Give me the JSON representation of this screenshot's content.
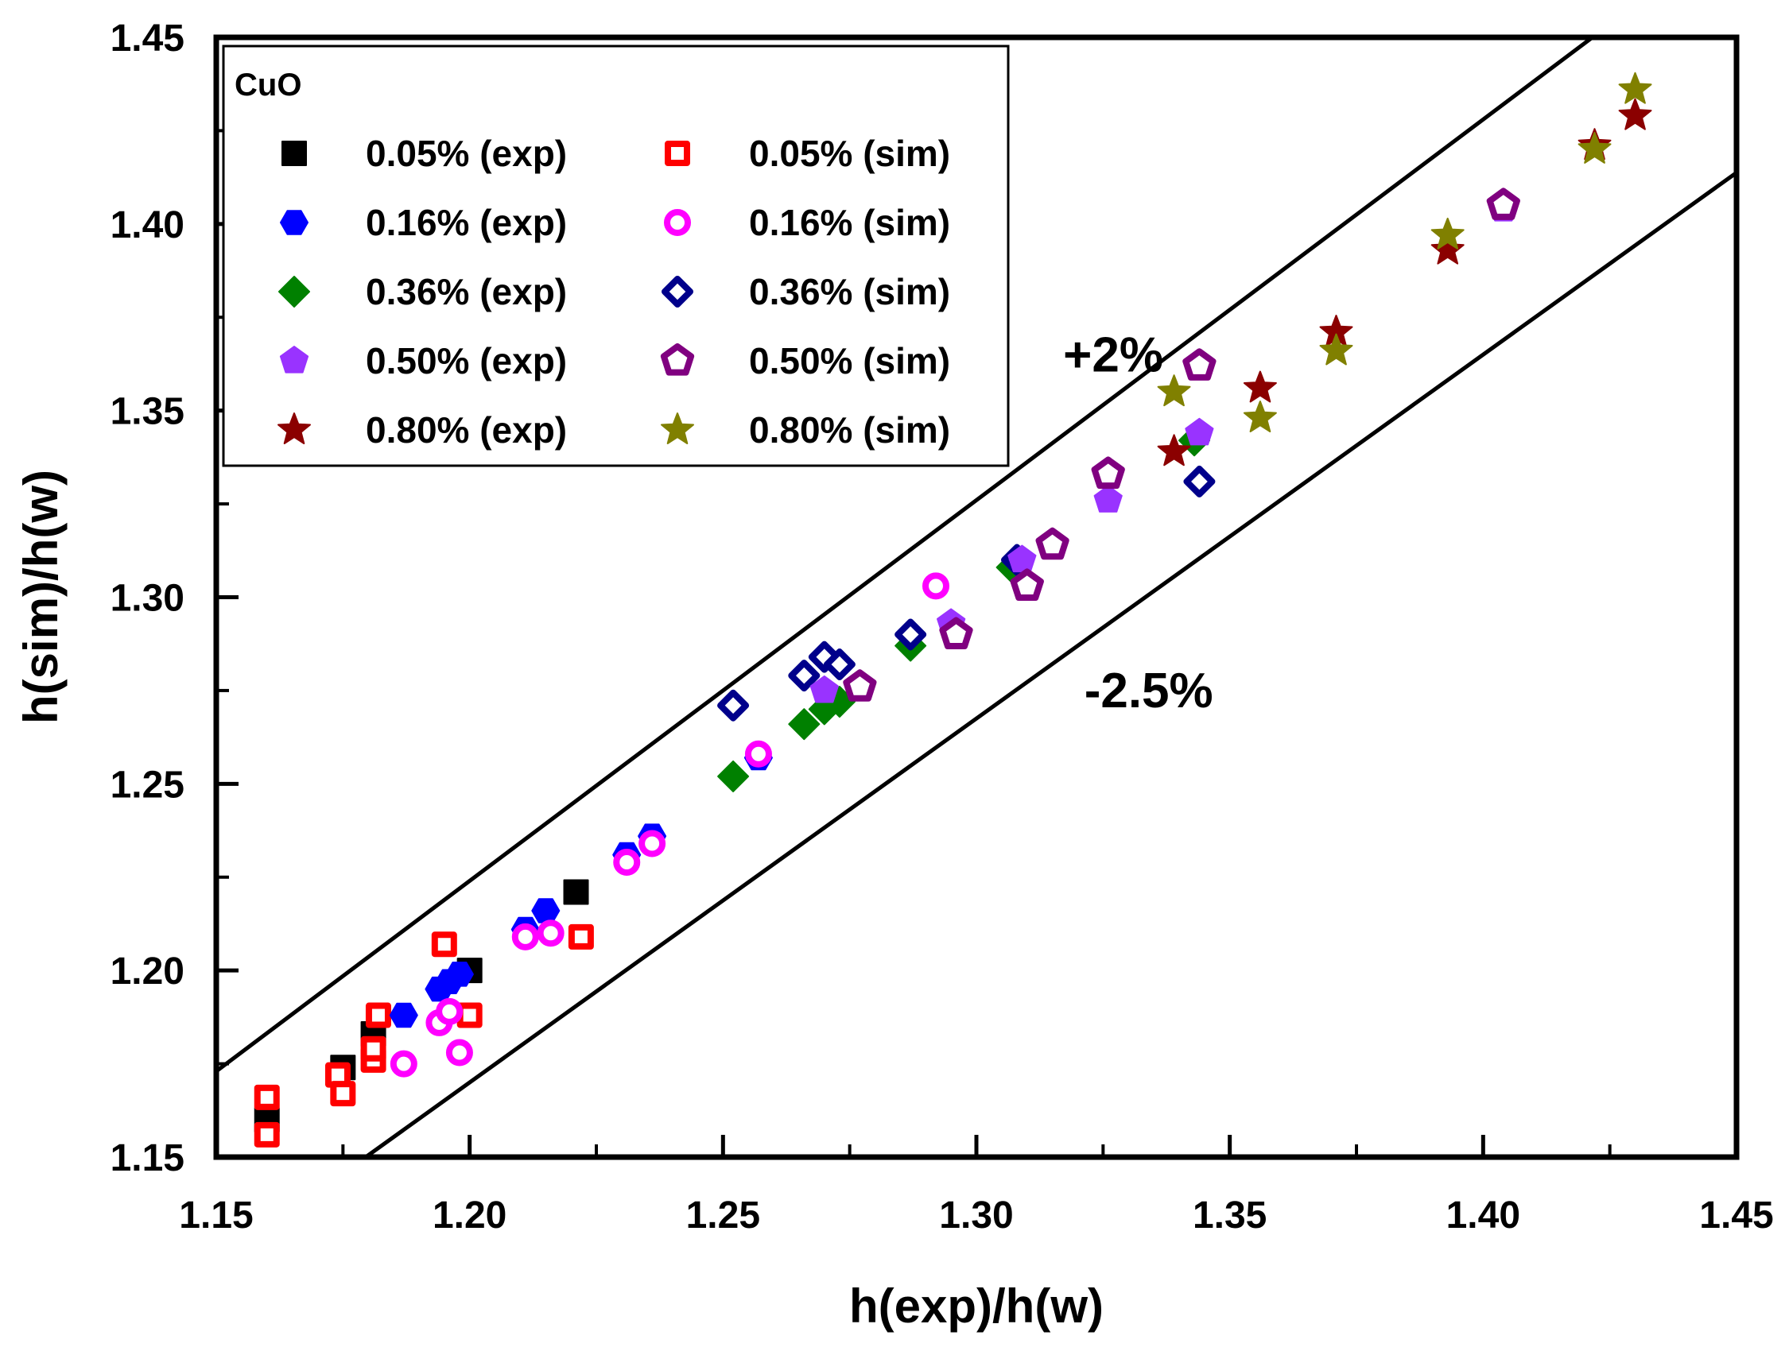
{
  "chart_data": {
    "type": "scatter",
    "title": "",
    "xlabel": "h(exp)/h(w)",
    "ylabel": "h(sim)/h(w)",
    "xlim": [
      1.15,
      1.45
    ],
    "ylim": [
      1.15,
      1.45
    ],
    "xticks": [
      "1.15",
      "1.20",
      "1.25",
      "1.30",
      "1.35",
      "1.40",
      "1.45"
    ],
    "yticks": [
      "1.15",
      "1.20",
      "1.25",
      "1.30",
      "1.35",
      "1.40",
      "1.45"
    ],
    "grid": false,
    "legend_title": "CuO",
    "legend_position": "top-left",
    "reference_lines": [
      {
        "label": "+2%",
        "factor": 1.02,
        "label_at": [
          1.327,
          1.3605
        ]
      },
      {
        "label": "-2.5%",
        "factor": 0.975,
        "label_at": [
          1.334,
          1.2705
        ]
      }
    ],
    "series": [
      {
        "name": "0.05% (exp)",
        "marker": "square",
        "filled": true,
        "color": "#000000",
        "points": [
          [
            1.16,
            1.16
          ],
          [
            1.175,
            1.174
          ],
          [
            1.181,
            1.183
          ],
          [
            1.2,
            1.2
          ],
          [
            1.221,
            1.221
          ]
        ]
      },
      {
        "name": "0.05% (sim)",
        "marker": "square",
        "filled": false,
        "color": "#ff0000",
        "points": [
          [
            1.16,
            1.156
          ],
          [
            1.16,
            1.166
          ],
          [
            1.174,
            1.172
          ],
          [
            1.175,
            1.167
          ],
          [
            1.181,
            1.176
          ],
          [
            1.181,
            1.179
          ],
          [
            1.182,
            1.188
          ],
          [
            1.195,
            1.207
          ],
          [
            1.2,
            1.188
          ],
          [
            1.222,
            1.209
          ]
        ]
      },
      {
        "name": "0.16% (exp)",
        "marker": "hexagon",
        "filled": true,
        "color": "#0000ff",
        "points": [
          [
            1.187,
            1.188
          ],
          [
            1.194,
            1.195
          ],
          [
            1.196,
            1.197
          ],
          [
            1.198,
            1.199
          ],
          [
            1.211,
            1.211
          ],
          [
            1.215,
            1.216
          ],
          [
            1.231,
            1.231
          ],
          [
            1.236,
            1.236
          ],
          [
            1.257,
            1.257
          ]
        ]
      },
      {
        "name": "0.16% (sim)",
        "marker": "circle",
        "filled": false,
        "color": "#ff00ff",
        "points": [
          [
            1.187,
            1.175
          ],
          [
            1.194,
            1.186
          ],
          [
            1.196,
            1.189
          ],
          [
            1.198,
            1.178
          ],
          [
            1.211,
            1.209
          ],
          [
            1.216,
            1.21
          ],
          [
            1.231,
            1.229
          ],
          [
            1.236,
            1.234
          ],
          [
            1.257,
            1.258
          ],
          [
            1.292,
            1.303
          ]
        ]
      },
      {
        "name": "0.36% (exp)",
        "marker": "diamond",
        "filled": true,
        "color": "#008000",
        "points": [
          [
            1.252,
            1.252
          ],
          [
            1.266,
            1.266
          ],
          [
            1.27,
            1.27
          ],
          [
            1.273,
            1.272
          ],
          [
            1.287,
            1.287
          ],
          [
            1.307,
            1.308
          ],
          [
            1.343,
            1.342
          ]
        ]
      },
      {
        "name": "0.36% (sim)",
        "marker": "diamond",
        "filled": false,
        "color": "#00008b",
        "points": [
          [
            1.252,
            1.271
          ],
          [
            1.266,
            1.279
          ],
          [
            1.27,
            1.284
          ],
          [
            1.273,
            1.282
          ],
          [
            1.287,
            1.29
          ],
          [
            1.308,
            1.31
          ],
          [
            1.344,
            1.331
          ]
        ]
      },
      {
        "name": "0.50% (exp)",
        "marker": "pentagon",
        "filled": true,
        "color": "#9933ff",
        "points": [
          [
            1.27,
            1.275
          ],
          [
            1.295,
            1.293
          ],
          [
            1.309,
            1.31
          ],
          [
            1.326,
            1.326
          ],
          [
            1.344,
            1.344
          ],
          [
            1.404,
            1.404
          ]
        ]
      },
      {
        "name": "0.50% (sim)",
        "marker": "pentagon",
        "filled": false,
        "color": "#800080",
        "points": [
          [
            1.277,
            1.276
          ],
          [
            1.296,
            1.29
          ],
          [
            1.31,
            1.303
          ],
          [
            1.315,
            1.314
          ],
          [
            1.326,
            1.333
          ],
          [
            1.344,
            1.362
          ],
          [
            1.404,
            1.405
          ]
        ]
      },
      {
        "name": "0.80% (exp)",
        "marker": "star",
        "filled": true,
        "color": "#8b0000",
        "points": [
          [
            1.339,
            1.339
          ],
          [
            1.356,
            1.356
          ],
          [
            1.371,
            1.371
          ],
          [
            1.393,
            1.393
          ],
          [
            1.422,
            1.421
          ],
          [
            1.43,
            1.429
          ]
        ]
      },
      {
        "name": "0.80% (sim)",
        "marker": "star",
        "filled": true,
        "color": "#808000",
        "points": [
          [
            1.339,
            1.355
          ],
          [
            1.356,
            1.348
          ],
          [
            1.371,
            1.366
          ],
          [
            1.393,
            1.397
          ],
          [
            1.422,
            1.42
          ],
          [
            1.43,
            1.436
          ]
        ]
      }
    ]
  }
}
